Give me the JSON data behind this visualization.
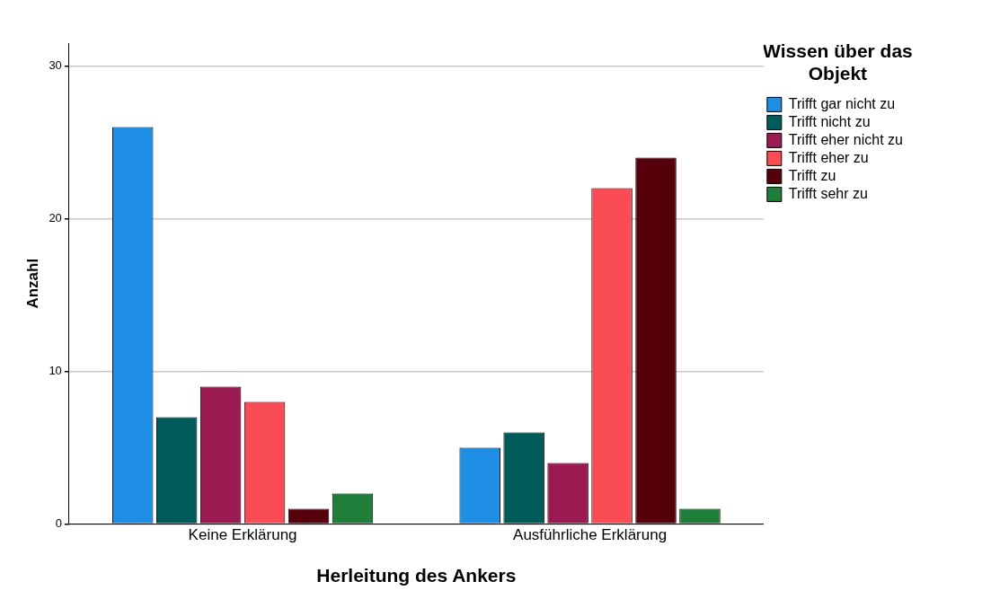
{
  "chart_data": {
    "type": "bar",
    "xlabel": "Herleitung des Ankers",
    "ylabel": "Anzahl",
    "legend_title": "Wissen über das Objekt",
    "categories": [
      "Keine Erklärung",
      "Ausführliche Erklärung"
    ],
    "series": [
      {
        "name": "Trifft gar nicht zu",
        "color": "#1f8fe6",
        "values": [
          26,
          5
        ]
      },
      {
        "name": "Trifft nicht zu",
        "color": "#005b5b",
        "values": [
          7,
          6
        ]
      },
      {
        "name": "Trifft eher nicht zu",
        "color": "#9c1a52",
        "values": [
          9,
          4
        ]
      },
      {
        "name": "Trifft eher zu",
        "color": "#f94c55",
        "values": [
          8,
          22
        ]
      },
      {
        "name": "Trifft zu",
        "color": "#55000a",
        "values": [
          1,
          24
        ]
      },
      {
        "name": "Trifft sehr zu",
        "color": "#1e7e3a",
        "values": [
          2,
          1
        ]
      }
    ],
    "ylim": [
      0,
      31.5
    ],
    "yticks": [
      0,
      10,
      20,
      30
    ],
    "grid": "y",
    "legend": "top right"
  }
}
